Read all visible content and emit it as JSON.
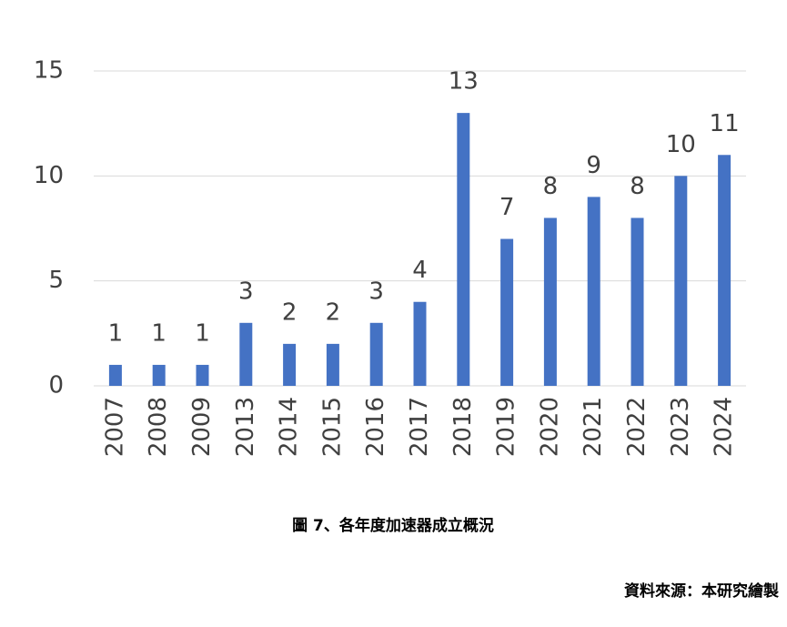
{
  "chart_data": {
    "type": "bar",
    "categories": [
      "2007",
      "2008",
      "2009",
      "2013",
      "2014",
      "2015",
      "2016",
      "2017",
      "2018",
      "2019",
      "2020",
      "2021",
      "2022",
      "2023",
      "2024"
    ],
    "values": [
      1,
      1,
      1,
      3,
      2,
      2,
      3,
      4,
      13,
      7,
      8,
      9,
      8,
      10,
      11
    ],
    "color": "#4472c4",
    "ylim": [
      0,
      15
    ],
    "yticks": [
      0,
      5,
      10,
      15
    ],
    "grid": true,
    "caption": "圖 7、各年度加速器成立概況",
    "source": "資料來源：本研究繪製"
  }
}
